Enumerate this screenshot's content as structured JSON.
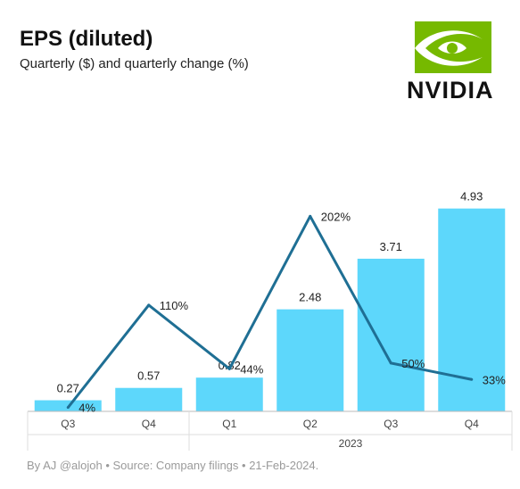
{
  "header": {
    "title": "EPS (diluted)",
    "subtitle": "Quarterly ($) and quarterly change (%)",
    "logo_text": "NVIDIA",
    "logo_icon": "nvidia-eye-icon"
  },
  "footer": {
    "source": "By AJ @alojoh • Source: Company filings • 21-Feb-2024."
  },
  "colors": {
    "bar": "#5dd7fb",
    "line": "#1f6f94",
    "logo_green": "#76b900"
  },
  "chart_data": {
    "type": "bar",
    "categories": [
      "Q3",
      "Q4",
      "Q1",
      "Q2",
      "Q3",
      "Q4"
    ],
    "year_groups": [
      {
        "label": "",
        "span": [
          0,
          1
        ]
      },
      {
        "label": "2023",
        "span": [
          2,
          5
        ]
      }
    ],
    "series": [
      {
        "type": "bar",
        "values": [
          0.27,
          0.57,
          0.82,
          2.48,
          3.71,
          4.93
        ],
        "labels": [
          "0.27",
          "0.57",
          "0.82",
          "2.48",
          "3.71",
          "4.93"
        ]
      },
      {
        "type": "line",
        "values": [
          4,
          110,
          44,
          202,
          50,
          33
        ],
        "labels": [
          "4%",
          "110%",
          "44%",
          "202%",
          "50%",
          "33%"
        ]
      }
    ],
    "ylim_bar": [
      0,
      5.4
    ],
    "ylim_line": [
      0,
      230
    ],
    "grid": false,
    "legend": "none"
  }
}
